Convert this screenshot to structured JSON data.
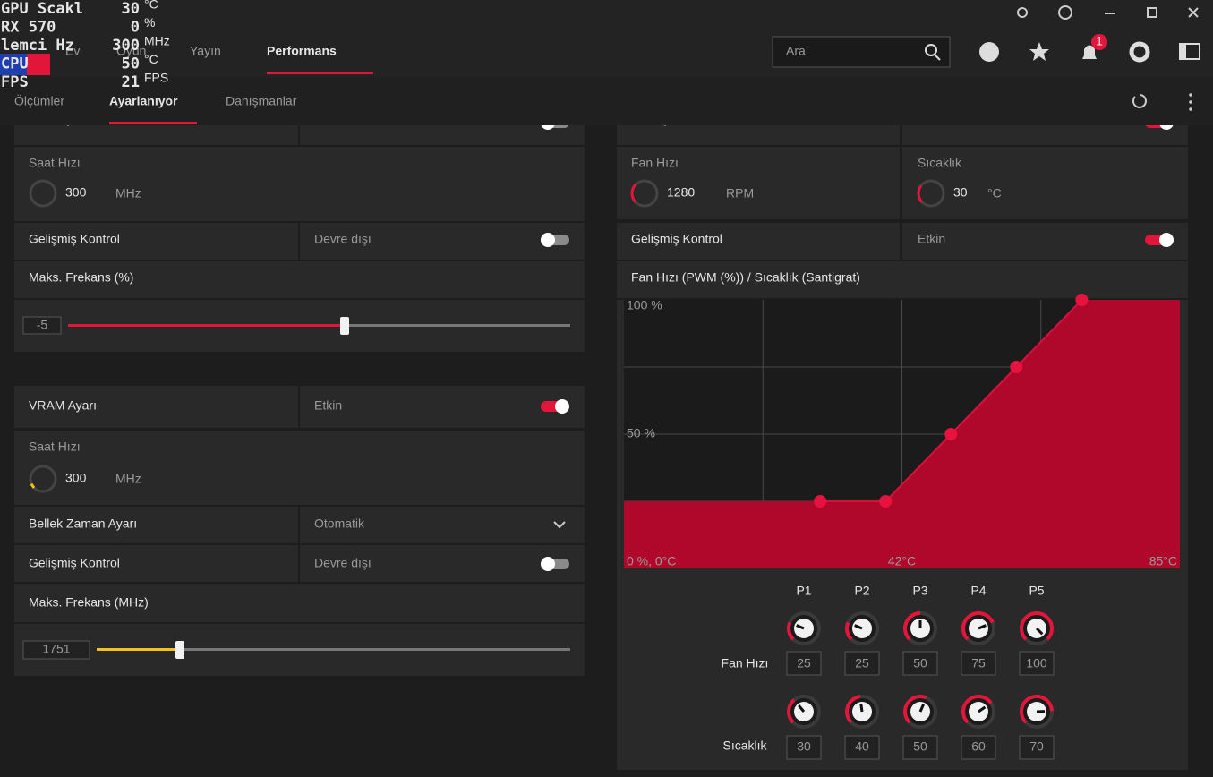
{
  "overlay": [
    {
      "label": "GPU Scakl",
      "value": "30",
      "unit": "°C"
    },
    {
      "label": "RX 570",
      "value": "0",
      "unit": "%"
    },
    {
      "label": "lemci Hz",
      "value": "300",
      "unit": "MHz"
    },
    {
      "label": "CPU",
      "value": "50",
      "unit": "°C"
    },
    {
      "label": "FPS",
      "value": "21",
      "unit": "FPS"
    }
  ],
  "nav": {
    "tabs": [
      "Ev",
      "Oyun",
      "Yayın",
      "Performans"
    ],
    "search": "Ara",
    "notifications": "1"
  },
  "subnav": [
    "Ölçümler",
    "Ayarlanıyor",
    "Danışmanlar"
  ],
  "gpu": {
    "title": "GPU Ayarı",
    "clock_label": "Saat Hızı",
    "clock": "300",
    "clock_unit": "MHz",
    "advanced_label": "Gelişmiş Kontrol",
    "advanced": "Devre dışı",
    "max_freq_label": "Maks. Frekans (%)",
    "max_freq": "-5"
  },
  "vram": {
    "title": "VRAM Ayarı",
    "state": "Etkin",
    "clock_label": "Saat Hızı",
    "clock": "300",
    "clock_unit": "MHz",
    "timing_label": "Bellek Zaman Ayarı",
    "timing": "Otomatik",
    "advanced_label": "Gelişmiş Kontrol",
    "advanced": "Devre dışı",
    "max_freq_label": "Maks. Frekans (MHz)",
    "max_freq": "1751"
  },
  "fan": {
    "title": "Fan Ayarı",
    "speed_label": "Fan Hızı",
    "speed": "1280",
    "speed_unit": "RPM",
    "temp_label": "Sıcaklık",
    "temp": "30",
    "temp_unit": "°C",
    "advanced_label": "Gelişmiş Kontrol",
    "advanced": "Etkin",
    "curve_title": "Fan Hızı (PWM (%)) / Sıcaklık (Santigrat)"
  },
  "fan_curve": {
    "xlim": [
      0,
      85
    ],
    "ylim": [
      0,
      100
    ],
    "y_labels": [
      "100 %",
      "50 %"
    ],
    "x_labels": [
      "0 %, 0°C",
      "42°C",
      "85°C"
    ],
    "row_labels": [
      "Fan Hızı",
      "Sıcaklık"
    ],
    "points": [
      {
        "label": "P1",
        "fan": 25,
        "temp": 30
      },
      {
        "label": "P2",
        "fan": 25,
        "temp": 40
      },
      {
        "label": "P3",
        "fan": 50,
        "temp": 50
      },
      {
        "label": "P4",
        "fan": 75,
        "temp": 60
      },
      {
        "label": "P5",
        "fan": 100,
        "temp": 70
      }
    ]
  }
}
